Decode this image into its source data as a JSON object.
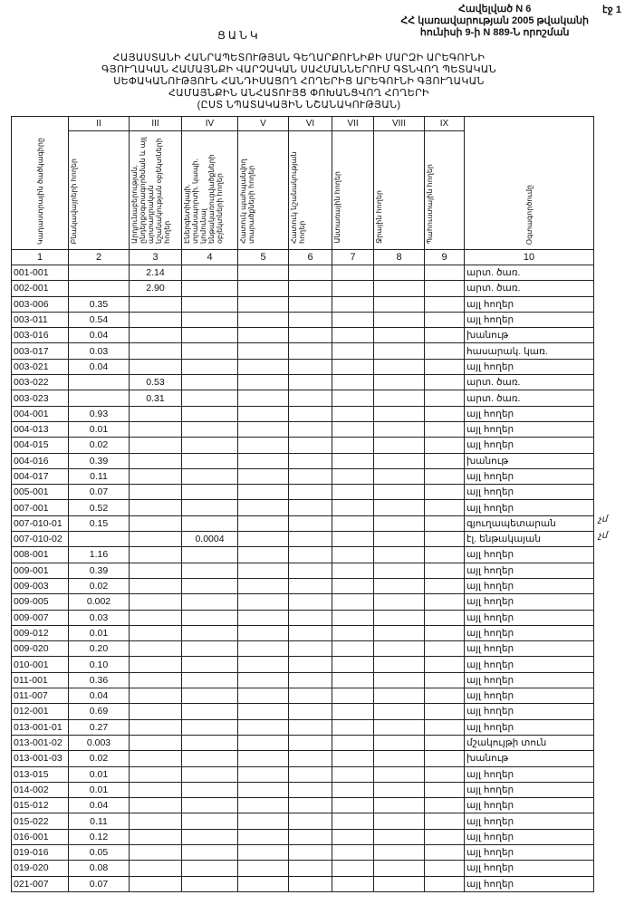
{
  "document": {
    "title": "ՑԱՆԿ",
    "page": "էջ 1",
    "annex": [
      "Հավելված N 6",
      "ՀՀ կառավարության 2005 թվականի",
      "հունիսի 9-ի N 889-Ն որոշման"
    ],
    "heading": [
      "ՀԱՅԱՍՏԱՆԻ ՀԱՆՐԱՊԵՏՈՒԹՅԱՆ ԳԵՂԱՐՔՈՒՆԻՔԻ ՄԱՐԶԻ ԱՐԵԳՈՒՆԻ",
      "ԳՅՈՒՂԱԿԱՆ ՀԱՄԱՅՆՔԻ ՎԱՐՉԱԿԱՆ ՍԱՀՄԱՆՆԵՐՈՒՄ ԳՏՆՎՈՂ ՊԵՏԱԿԱՆ",
      "ՍԵՓԱԿԱՆՈՒԹՅՈՒՆ ՀԱՆԴԻՍԱՑՈՂ ՀՈՂԵՐԻՑ ԱՐԵԳՈՒՆԻ ԳՅՈՒՂԱԿԱՆ",
      "ՀԱՄԱՅՆՔԻՆ ԱՆՀԱՏՈՒՅՑ ՓՈԽԱՆՑՎՈՂ ՀՈՂԵՐԻ",
      "(ԸՍՏ ՆՊԱՏԱԿԱՅԻՆ ՆՇԱՆԱԿՈՒԹՅԱՆ)"
    ]
  },
  "table": {
    "roman": [
      "",
      "II",
      "III",
      "IV",
      "V",
      "VI",
      "VII",
      "VIII",
      "IX",
      ""
    ],
    "headers": [
      "Կադաստրային ծածկագիրը",
      "Բնակավայրերի հողեր",
      "Արդյունաբերության, ընդերքօգտագործման և այլ արտադրական նշանակության օբյեկտների հողեր",
      "Էներգետիկայի, տրանսպորտի, կապի, կոմունալ ենթակառուցվածքների օբյեկտների հողեր",
      "Հատուկ պահպանվող տարածքների հողեր",
      "Հատուկ նշանակության հողեր",
      "Անտառային հողեր",
      "Ջրային հողեր",
      "Պահուստային հողեր",
      "Օգտագործումը"
    ],
    "numbers": [
      "1",
      "2",
      "3",
      "4",
      "5",
      "6",
      "7",
      "8",
      "9",
      "10"
    ],
    "rows": [
      {
        "code": "001-001",
        "c2": "",
        "c3": "2.14",
        "c4": "",
        "use": "արտ. ծառ."
      },
      {
        "code": "002-001",
        "c2": "",
        "c3": "2.90",
        "c4": "",
        "use": "արտ. ծառ."
      },
      {
        "code": "003-006",
        "c2": "0.35",
        "c3": "",
        "c4": "",
        "use": "այլ հողեր"
      },
      {
        "code": "003-011",
        "c2": "0.54",
        "c3": "",
        "c4": "",
        "use": "այլ հողեր"
      },
      {
        "code": "003-016",
        "c2": "0.04",
        "c3": "",
        "c4": "",
        "use": "խանութ"
      },
      {
        "code": "003-017",
        "c2": "0.03",
        "c3": "",
        "c4": "",
        "use": "հասարակ. կառ."
      },
      {
        "code": "003-021",
        "c2": "0.04",
        "c3": "",
        "c4": "",
        "use": "այլ հողեր"
      },
      {
        "code": "003-022",
        "c2": "",
        "c3": "0.53",
        "c4": "",
        "use": "արտ. ծառ."
      },
      {
        "code": "003-023",
        "c2": "",
        "c3": "0.31",
        "c4": "",
        "use": "արտ. ծառ."
      },
      {
        "code": "004-001",
        "c2": "0.93",
        "c3": "",
        "c4": "",
        "use": "այլ հողեր"
      },
      {
        "code": "004-013",
        "c2": "0.01",
        "c3": "",
        "c4": "",
        "use": "այլ հողեր"
      },
      {
        "code": "004-015",
        "c2": "0.02",
        "c3": "",
        "c4": "",
        "use": "այլ հողեր"
      },
      {
        "code": "004-016",
        "c2": "0.39",
        "c3": "",
        "c4": "",
        "use": "խանութ"
      },
      {
        "code": "004-017",
        "c2": "0.11",
        "c3": "",
        "c4": "",
        "use": "այլ հողեր"
      },
      {
        "code": "005-001",
        "c2": "0.07",
        "c3": "",
        "c4": "",
        "use": "այլ հողեր"
      },
      {
        "code": "007-001",
        "c2": "0.52",
        "c3": "",
        "c4": "",
        "use": "այլ հողեր"
      },
      {
        "code": "007-010-01",
        "c2": "0.15",
        "c3": "",
        "c4": "",
        "use": "գյուղապետարան",
        "note": "չմ"
      },
      {
        "code": "007-010-02",
        "c2": "",
        "c3": "",
        "c4": "0.0004",
        "use": "էլ. ենթակայան",
        "note": "չմ"
      },
      {
        "code": "008-001",
        "c2": "1.16",
        "c3": "",
        "c4": "",
        "use": "այլ հողեր"
      },
      {
        "code": "009-001",
        "c2": "0.39",
        "c3": "",
        "c4": "",
        "use": "այլ հողեր"
      },
      {
        "code": "009-003",
        "c2": "0.02",
        "c3": "",
        "c4": "",
        "use": "այլ հողեր"
      },
      {
        "code": "009-005",
        "c2": "0.002",
        "c3": "",
        "c4": "",
        "use": "այլ հողեր"
      },
      {
        "code": "009-007",
        "c2": "0.03",
        "c3": "",
        "c4": "",
        "use": "այլ հողեր"
      },
      {
        "code": "009-012",
        "c2": "0.01",
        "c3": "",
        "c4": "",
        "use": "այլ հողեր"
      },
      {
        "code": "009-020",
        "c2": "0.20",
        "c3": "",
        "c4": "",
        "use": "այլ հողեր"
      },
      {
        "code": "010-001",
        "c2": "0.10",
        "c3": "",
        "c4": "",
        "use": "այլ հողեր"
      },
      {
        "code": "011-001",
        "c2": "0.36",
        "c3": "",
        "c4": "",
        "use": "այլ հողեր"
      },
      {
        "code": "011-007",
        "c2": "0.04",
        "c3": "",
        "c4": "",
        "use": "այլ հողեր"
      },
      {
        "code": "012-001",
        "c2": "0.69",
        "c3": "",
        "c4": "",
        "use": "այլ հողեր"
      },
      {
        "code": "013-001-01",
        "c2": "0.27",
        "c3": "",
        "c4": "",
        "use": "այլ հողեր"
      },
      {
        "code": "013-001-02",
        "c2": "0.003",
        "c3": "",
        "c4": "",
        "use": "մշակույթի տուն"
      },
      {
        "code": "013-001-03",
        "c2": "0.02",
        "c3": "",
        "c4": "",
        "use": "խանութ"
      },
      {
        "code": "013-015",
        "c2": "0.01",
        "c3": "",
        "c4": "",
        "use": "այլ հողեր"
      },
      {
        "code": "014-002",
        "c2": "0.01",
        "c3": "",
        "c4": "",
        "use": "այլ հողեր"
      },
      {
        "code": "015-012",
        "c2": "0.04",
        "c3": "",
        "c4": "",
        "use": "այլ հողեր"
      },
      {
        "code": "015-022",
        "c2": "0.11",
        "c3": "",
        "c4": "",
        "use": "այլ հողեր"
      },
      {
        "code": "016-001",
        "c2": "0.12",
        "c3": "",
        "c4": "",
        "use": "այլ հողեր"
      },
      {
        "code": "019-016",
        "c2": "0.05",
        "c3": "",
        "c4": "",
        "use": "այլ հողեր"
      },
      {
        "code": "019-020",
        "c2": "0.08",
        "c3": "",
        "c4": "",
        "use": "այլ հողեր"
      },
      {
        "code": "021-007",
        "c2": "0.07",
        "c3": "",
        "c4": "",
        "use": "այլ հողեր"
      }
    ]
  }
}
